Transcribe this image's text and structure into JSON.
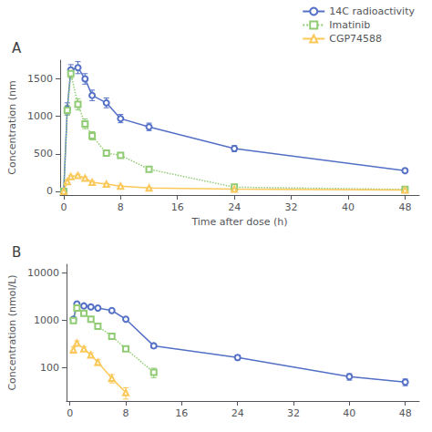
{
  "chart_data": [
    {
      "type": "line",
      "title": "A",
      "xlabel": "Time after dose (h)",
      "ylabel": "Concentration (nm",
      "xlim": [
        -0.5,
        50
      ],
      "ylim": [
        -50,
        1750
      ],
      "xticks": [
        0,
        8,
        16,
        24,
        32,
        40,
        48
      ],
      "yticks": [
        0,
        500,
        1000,
        1500
      ],
      "grid": false,
      "legend": "upper right",
      "series": [
        {
          "name": "14C radioactivity",
          "marker": "circle",
          "line_style": "solid",
          "x": [
            0,
            0.5,
            1,
            2,
            3,
            4,
            6,
            8,
            12,
            24,
            48
          ],
          "values": [
            0,
            1100,
            1620,
            1650,
            1500,
            1280,
            1180,
            970,
            860,
            570,
            275
          ],
          "yerr": [
            0,
            80,
            70,
            80,
            70,
            70,
            65,
            55,
            50,
            40,
            25
          ]
        },
        {
          "name": "Imatinib",
          "marker": "square",
          "line_style": "dotted",
          "x": [
            0,
            0.5,
            1,
            2,
            3,
            4,
            6,
            8,
            12,
            24,
            48
          ],
          "values": [
            0,
            1080,
            1570,
            1160,
            900,
            740,
            510,
            480,
            295,
            55,
            25
          ],
          "yerr": [
            0,
            65,
            60,
            75,
            65,
            55,
            38,
            38,
            28,
            18,
            8
          ]
        },
        {
          "name": "CGP74588",
          "marker": "triangle",
          "line_style": "solid",
          "x": [
            0,
            0.5,
            1,
            2,
            3,
            4,
            6,
            8,
            12,
            24,
            48
          ],
          "values": [
            0,
            130,
            195,
            210,
            175,
            120,
            95,
            70,
            45,
            28,
            18
          ],
          "yerr": [
            0,
            20,
            20,
            20,
            15,
            14,
            10,
            10,
            8,
            5,
            4
          ]
        }
      ]
    },
    {
      "type": "line",
      "title": "B",
      "ylabel": "Concentration (nmol/L)",
      "xlim": [
        -0.5,
        50
      ],
      "ylim": [
        20,
        15000
      ],
      "xticks": [
        0,
        8,
        16,
        24,
        32,
        40,
        48
      ],
      "yticks": [
        100,
        1000,
        10000
      ],
      "log": "y",
      "grid": false,
      "series": [
        {
          "name": "14C radioactivity",
          "marker": "circle",
          "line_style": "solid",
          "x": [
            0.5,
            1,
            2,
            3,
            4,
            6,
            8,
            12,
            24,
            40,
            48
          ],
          "values": [
            1050,
            2200,
            2000,
            1900,
            1800,
            1600,
            1050,
            290,
            165,
            65,
            50
          ],
          "yerr": [
            100,
            120,
            110,
            100,
            100,
            90,
            70,
            30,
            20,
            10,
            8
          ]
        },
        {
          "name": "Imatinib",
          "marker": "square",
          "line_style": "dotted",
          "x": [
            0.5,
            1,
            2,
            3,
            4,
            6,
            8,
            12
          ],
          "values": [
            980,
            1800,
            1400,
            1050,
            750,
            460,
            250,
            80
          ],
          "yerr": [
            75,
            80,
            75,
            65,
            55,
            45,
            28,
            18
          ]
        },
        {
          "name": "CGP74588",
          "marker": "triangle",
          "line_style": "solid",
          "x": [
            0.5,
            1,
            2,
            3,
            4,
            6,
            8
          ],
          "values": [
            240,
            330,
            250,
            185,
            130,
            60,
            30
          ],
          "yerr": [
            38,
            38,
            28,
            22,
            18,
            12,
            8
          ]
        }
      ]
    }
  ]
}
